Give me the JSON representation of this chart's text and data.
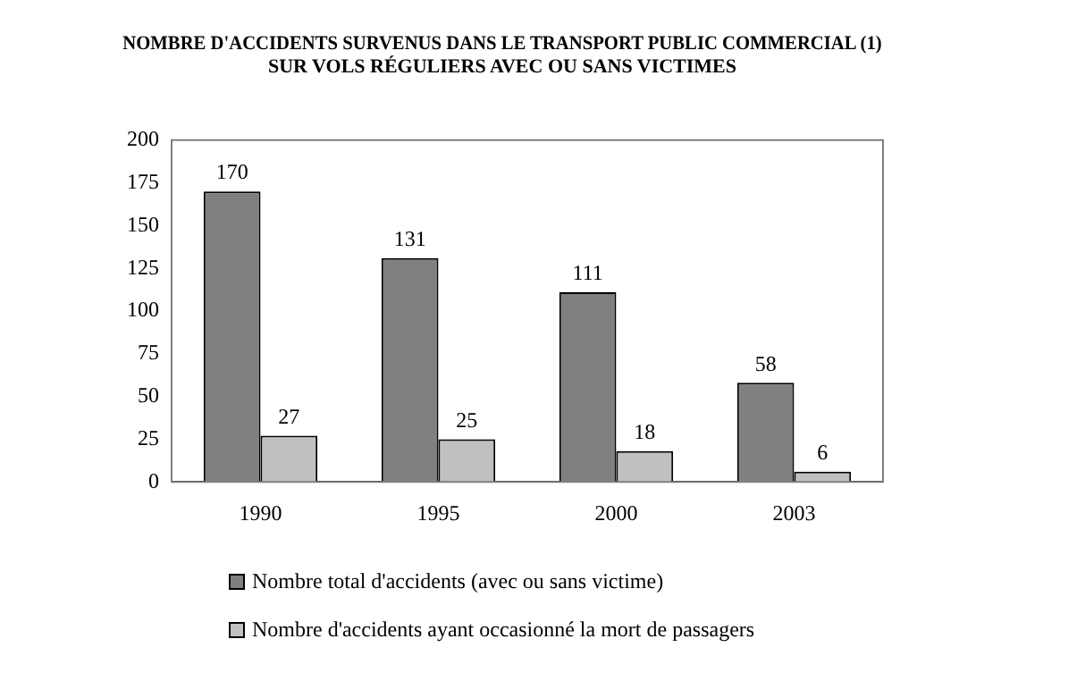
{
  "chart_data": {
    "type": "bar",
    "title": "NOMBRE D'ACCIDENTS SURVENUS DANS LE TRANSPORT PUBLIC COMMERCIAL (1)\nSUR VOLS RÉGULIERS AVEC OU SANS VICTIMES",
    "categories": [
      "1990",
      "1995",
      "2000",
      "2003"
    ],
    "series": [
      {
        "name": "Nombre total d'accidents (avec ou sans victime)",
        "color": "#808080",
        "values": [
          170,
          131,
          111,
          58
        ]
      },
      {
        "name": "Nombre d'accidents ayant occasionné la mort de passagers",
        "color": "#c0c0c0",
        "values": [
          27,
          25,
          18,
          6
        ]
      }
    ],
    "ylim": [
      0,
      200
    ],
    "yticks": [
      0,
      25,
      50,
      75,
      100,
      125,
      150,
      175,
      200
    ],
    "grid": false,
    "legend": "bottom",
    "data_labels": true
  }
}
